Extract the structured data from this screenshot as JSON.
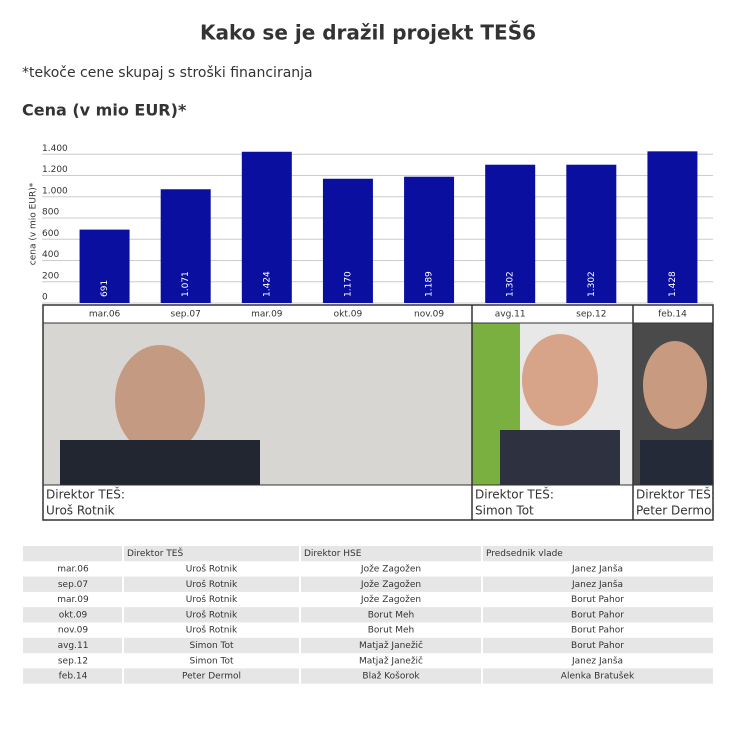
{
  "title": "Kako se je dražil projekt TEŠ6",
  "subtitle": "*tekoče cene skupaj s stroški financiranja",
  "chart_data": {
    "type": "bar",
    "title": "Cena (v mio EUR)*",
    "y_label": "cena (v mio EUR)*",
    "categories": [
      "mar.06",
      "sep.07",
      "mar.09",
      "okt.09",
      "nov.09",
      "avg.11",
      "sep.12",
      "feb.14"
    ],
    "values": [
      691,
      1071,
      1424,
      1170,
      1189,
      1302,
      1302,
      1428
    ],
    "value_labels": [
      "691",
      "1.071",
      "1.424",
      "1.170",
      "1.189",
      "1.302",
      "1.302",
      "1.428"
    ],
    "color": "#0a0fa0",
    "ylim": [
      0,
      1450
    ],
    "yticks": [
      0,
      200,
      400,
      600,
      800,
      {
        "value": 1000,
        "label": "1.000"
      },
      {
        "value": 1200,
        "label": "1.200"
      },
      {
        "value": 1400,
        "label": "1.400"
      }
    ],
    "grid": true
  },
  "panels": [
    {
      "label": "Direktor TEŠ:",
      "name": "Uroš Rotnik"
    },
    {
      "label": "Direktor TEŠ:",
      "name": "Simon Tot"
    },
    {
      "label": "Direktor TEŠ:",
      "name": "Peter Dermol"
    }
  ],
  "table": {
    "header": [
      "Direktor TEŠ",
      "Direktor HSE",
      "Predsednik vlade"
    ],
    "rows": [
      [
        "mar.06",
        "Uroš Rotnik",
        "Jože Zagožen",
        "Janez Janša"
      ],
      [
        "sep.07",
        "Uroš Rotnik",
        "Jože Zagožen",
        "Janez Janša"
      ],
      [
        "mar.09",
        "Uroš Rotnik",
        "Jože Zagožen",
        "Borut Pahor"
      ],
      [
        "okt.09",
        "Uroš Rotnik",
        "Borut Meh",
        "Borut Pahor"
      ],
      [
        "nov.09",
        "Uroš Rotnik",
        "Borut Meh",
        "Borut Pahor"
      ],
      [
        "avg.11",
        "Simon Tot",
        "Matjaž Janežič",
        "Borut Pahor"
      ],
      [
        "sep.12",
        "Simon Tot",
        "Matjaž Janežič",
        "Janez Janša"
      ],
      [
        "feb.14",
        "Peter Dermol",
        "Blaž Košorok",
        "Alenka Bratušek"
      ]
    ]
  }
}
